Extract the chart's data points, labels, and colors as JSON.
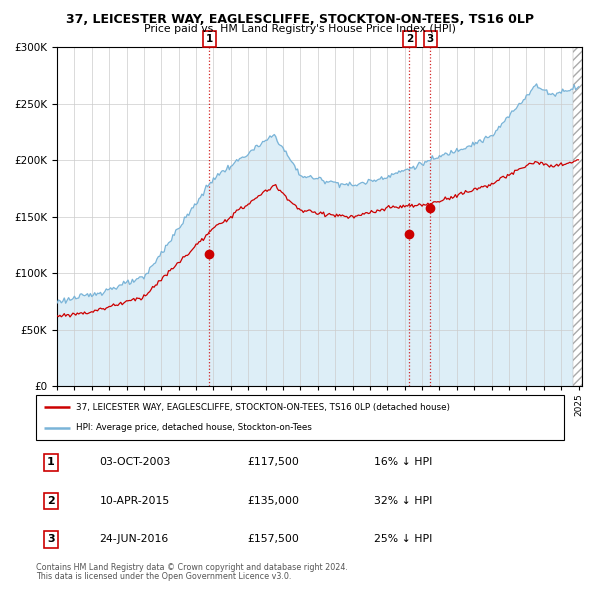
{
  "title": "37, LEICESTER WAY, EAGLESCLIFFE, STOCKTON-ON-TEES, TS16 0LP",
  "subtitle": "Price paid vs. HM Land Registry's House Price Index (HPI)",
  "legend_line1": "37, LEICESTER WAY, EAGLESCLIFFE, STOCKTON-ON-TEES, TS16 0LP (detached house)",
  "legend_line2": "HPI: Average price, detached house, Stockton-on-Tees",
  "footer1": "Contains HM Land Registry data © Crown copyright and database right 2024.",
  "footer2": "This data is licensed under the Open Government Licence v3.0.",
  "transactions": [
    {
      "label": "1",
      "date": "03-OCT-2003",
      "price": 117500,
      "pct": "16% ↓ HPI",
      "x_year": 2003.75
    },
    {
      "label": "2",
      "date": "10-APR-2015",
      "price": 135000,
      "pct": "32% ↓ HPI",
      "x_year": 2015.27
    },
    {
      "label": "3",
      "date": "24-JUN-2016",
      "price": 157500,
      "pct": "25% ↓ HPI",
      "x_year": 2016.48
    }
  ],
  "hpi_color": "#7ab4d8",
  "price_color": "#cc0000",
  "bg_color": "#ddeef7",
  "ylim": [
    0,
    300000
  ],
  "xlim_start": 1995.0,
  "xlim_end": 2025.2
}
